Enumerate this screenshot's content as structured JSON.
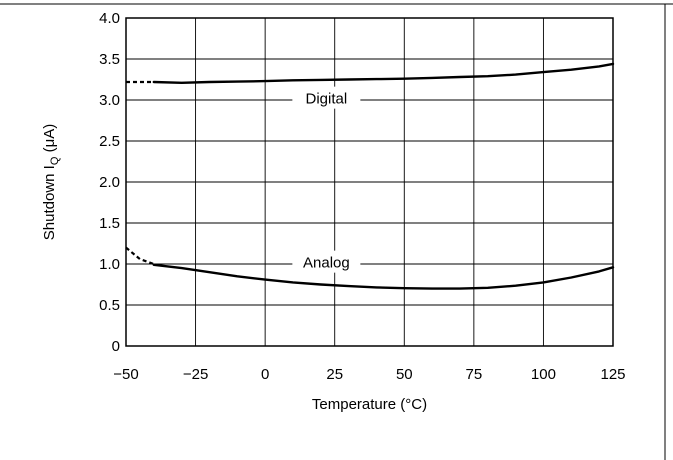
{
  "chart_data": {
    "type": "line",
    "title": "",
    "xlabel": "Temperature (°C)",
    "ylabel_main": "Shutdown I",
    "ylabel_sub": "Q",
    "ylabel_unit": " (μA)",
    "xlim": [
      -50,
      125
    ],
    "ylim": [
      0,
      4.0
    ],
    "grid": true,
    "x_ticks": [
      "−50",
      "−25",
      "0",
      "25",
      "50",
      "75",
      "100",
      "125"
    ],
    "x_tick_values": [
      -50,
      -25,
      0,
      25,
      50,
      75,
      100,
      125
    ],
    "y_ticks": [
      "0",
      "0.5",
      "1.0",
      "1.5",
      "2.0",
      "2.5",
      "3.0",
      "3.5",
      "4.0"
    ],
    "y_tick_values": [
      0,
      0.5,
      1.0,
      1.5,
      2.0,
      2.5,
      3.0,
      3.5,
      4.0
    ],
    "series": [
      {
        "name": "Digital",
        "dashed_segment": {
          "x": [
            -50,
            -40
          ],
          "y": [
            3.22,
            3.22
          ]
        },
        "x": [
          -40,
          -30,
          -20,
          -10,
          0,
          10,
          20,
          30,
          40,
          50,
          60,
          70,
          80,
          90,
          100,
          110,
          120,
          125
        ],
        "y": [
          3.22,
          3.21,
          3.22,
          3.225,
          3.23,
          3.24,
          3.245,
          3.25,
          3.255,
          3.26,
          3.27,
          3.28,
          3.29,
          3.31,
          3.34,
          3.37,
          3.41,
          3.44
        ]
      },
      {
        "name": "Analog",
        "dashed_segment": {
          "x": [
            -50,
            -45,
            -40
          ],
          "y": [
            1.2,
            1.06,
            1.0
          ]
        },
        "x": [
          -40,
          -30,
          -20,
          -10,
          0,
          10,
          20,
          30,
          40,
          50,
          60,
          70,
          80,
          90,
          100,
          110,
          120,
          125
        ],
        "y": [
          0.99,
          0.95,
          0.9,
          0.85,
          0.81,
          0.775,
          0.75,
          0.73,
          0.715,
          0.705,
          0.7,
          0.7,
          0.71,
          0.735,
          0.775,
          0.835,
          0.91,
          0.96
        ]
      }
    ],
    "labels": [
      {
        "text": "Digital",
        "series": "Digital",
        "x": 22,
        "y": 2.98
      },
      {
        "text": "Analog",
        "series": "Analog",
        "x": 22,
        "y": 0.98
      }
    ]
  }
}
